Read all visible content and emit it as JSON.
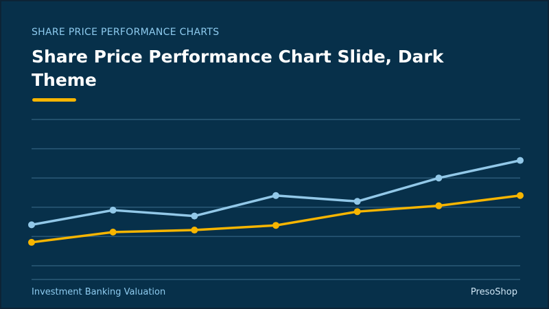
{
  "slide": {
    "eyebrow": "SHARE PRICE PERFORMANCE CHARTS",
    "title": "Share Price Performance Chart Slide, Dark Theme",
    "footer_left": "Investment Banking Valuation",
    "footer_right": "PresoShop"
  },
  "colors": {
    "background": "#07304a",
    "accent": "#f7b500",
    "series_light": "#92c8e8",
    "gridline": "#2b5a78",
    "eyebrow_text": "#8ecbef"
  },
  "chart_data": {
    "type": "line",
    "x": [
      1,
      2,
      3,
      4,
      5,
      6,
      7
    ],
    "ylim": [
      0,
      5
    ],
    "grid": true,
    "series": [
      {
        "color": "#92c8e8",
        "values": [
          1.4,
          1.9,
          1.7,
          2.4,
          2.2,
          3.0,
          3.6
        ]
      },
      {
        "color": "#f7b500",
        "values": [
          0.8,
          1.15,
          1.22,
          1.38,
          1.85,
          2.05,
          2.4
        ]
      }
    ]
  }
}
